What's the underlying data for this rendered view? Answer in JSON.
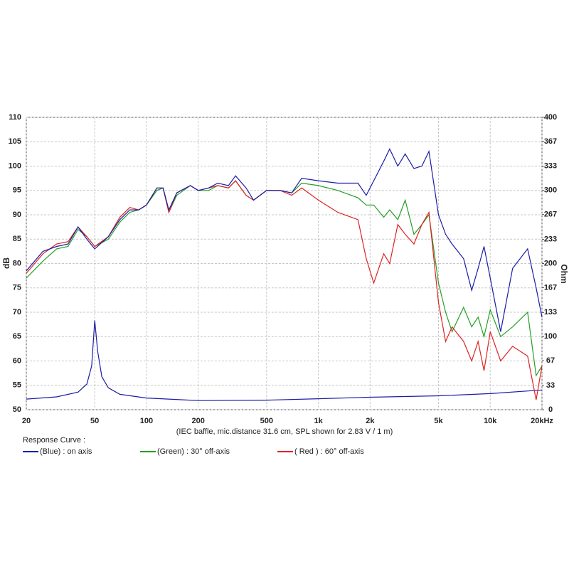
{
  "chart_data": {
    "type": "line",
    "caption": "(IEC baffle, mic.distance 31.6 cm, SPL shown for 2.83 V / 1 m)",
    "legend_title": "Response Curve :",
    "ylabel": "dB",
    "y2label": "Ohm",
    "xscale": "log",
    "grid": true,
    "xlim": [
      20,
      20000
    ],
    "xticks": [
      20,
      50,
      100,
      200,
      500,
      {
        "value": 1000,
        "label": "1k"
      },
      {
        "value": 2000,
        "label": "2k"
      },
      {
        "value": 5000,
        "label": "5k"
      },
      {
        "value": 10000,
        "label": "10k"
      },
      {
        "value": 20000,
        "label": "20kHz"
      }
    ],
    "ylim": [
      50,
      110
    ],
    "yticks": [
      50,
      55,
      60,
      65,
      70,
      75,
      80,
      85,
      90,
      95,
      100,
      105,
      110
    ],
    "y2lim": [
      0,
      400
    ],
    "y2ticks": [
      0,
      33,
      67,
      100,
      133,
      167,
      200,
      233,
      267,
      300,
      333,
      367,
      400
    ],
    "x": [
      20,
      25,
      30,
      35,
      40,
      45,
      50,
      60,
      70,
      80,
      90,
      100,
      115,
      125,
      135,
      150,
      180,
      200,
      230,
      260,
      300,
      330,
      380,
      420,
      500,
      600,
      700,
      800,
      1000,
      1300,
      1700,
      1900,
      2100,
      2400,
      2600,
      2900,
      3200,
      3600,
      4000,
      4400,
      5000,
      5500,
      6000,
      7000,
      7800,
      8500,
      9200,
      10000,
      11500,
      13500,
      16500,
      18500,
      20000
    ],
    "series": [
      {
        "name": "(Blue)  : on axis",
        "color": "#1c1ca8",
        "values": [
          78.5,
          82.5,
          83.5,
          84,
          87.5,
          85,
          83,
          85.5,
          89,
          91,
          91,
          92,
          95.5,
          95.5,
          91,
          94.5,
          96,
          95,
          95.5,
          96.5,
          96,
          98,
          95.5,
          93,
          95,
          95,
          94.5,
          97.5,
          97,
          96.5,
          96.5,
          94,
          97,
          101,
          103.5,
          100,
          102.5,
          99.5,
          100,
          103,
          90,
          86,
          84,
          81,
          74.5,
          79,
          83.5,
          77,
          66,
          79,
          83,
          75,
          69
        ]
      },
      {
        "name": "(Green) : 30° off-axis",
        "color": "#23a023",
        "values": [
          77,
          80.5,
          83,
          83.5,
          87,
          85.5,
          83.5,
          85,
          88.5,
          90.5,
          91,
          92,
          95,
          95.5,
          90.5,
          94,
          96,
          95,
          95,
          96,
          95.5,
          97,
          94,
          93,
          95,
          95,
          94.5,
          96.5,
          96,
          95,
          93.5,
          92,
          92,
          89.5,
          91,
          89,
          93,
          86,
          88,
          90,
          76,
          70,
          66,
          71,
          67,
          69,
          65,
          70.5,
          65,
          67,
          70,
          57,
          59
        ]
      },
      {
        "name": "( Red ) : 60° off-axis",
        "color": "#e02222",
        "values": [
          78,
          82,
          84,
          84.5,
          87.5,
          85.5,
          83.5,
          85.5,
          89.5,
          91.5,
          91,
          92,
          95.5,
          95.5,
          90.5,
          94.5,
          96,
          95,
          95.5,
          96,
          95.5,
          97,
          94,
          93,
          95,
          95,
          94,
          95.5,
          93,
          90.5,
          89,
          81,
          76,
          82,
          80,
          88,
          86,
          84,
          88,
          90.5,
          72,
          64,
          67,
          64,
          60,
          64,
          58,
          66,
          60,
          63,
          61,
          52,
          59
        ]
      },
      {
        "axis": "y2",
        "color": "#1c1ca8",
        "x": [
          20,
          30,
          40,
          45,
          48,
          50,
          52,
          55,
          60,
          70,
          100,
          200,
          500,
          1000,
          2000,
          5000,
          10000,
          20000
        ],
        "values": [
          14.5,
          17.5,
          24,
          35,
          60,
          122,
          80,
          45,
          30,
          21,
          16,
          12.5,
          13,
          15,
          17,
          19,
          22,
          27
        ]
      }
    ]
  }
}
